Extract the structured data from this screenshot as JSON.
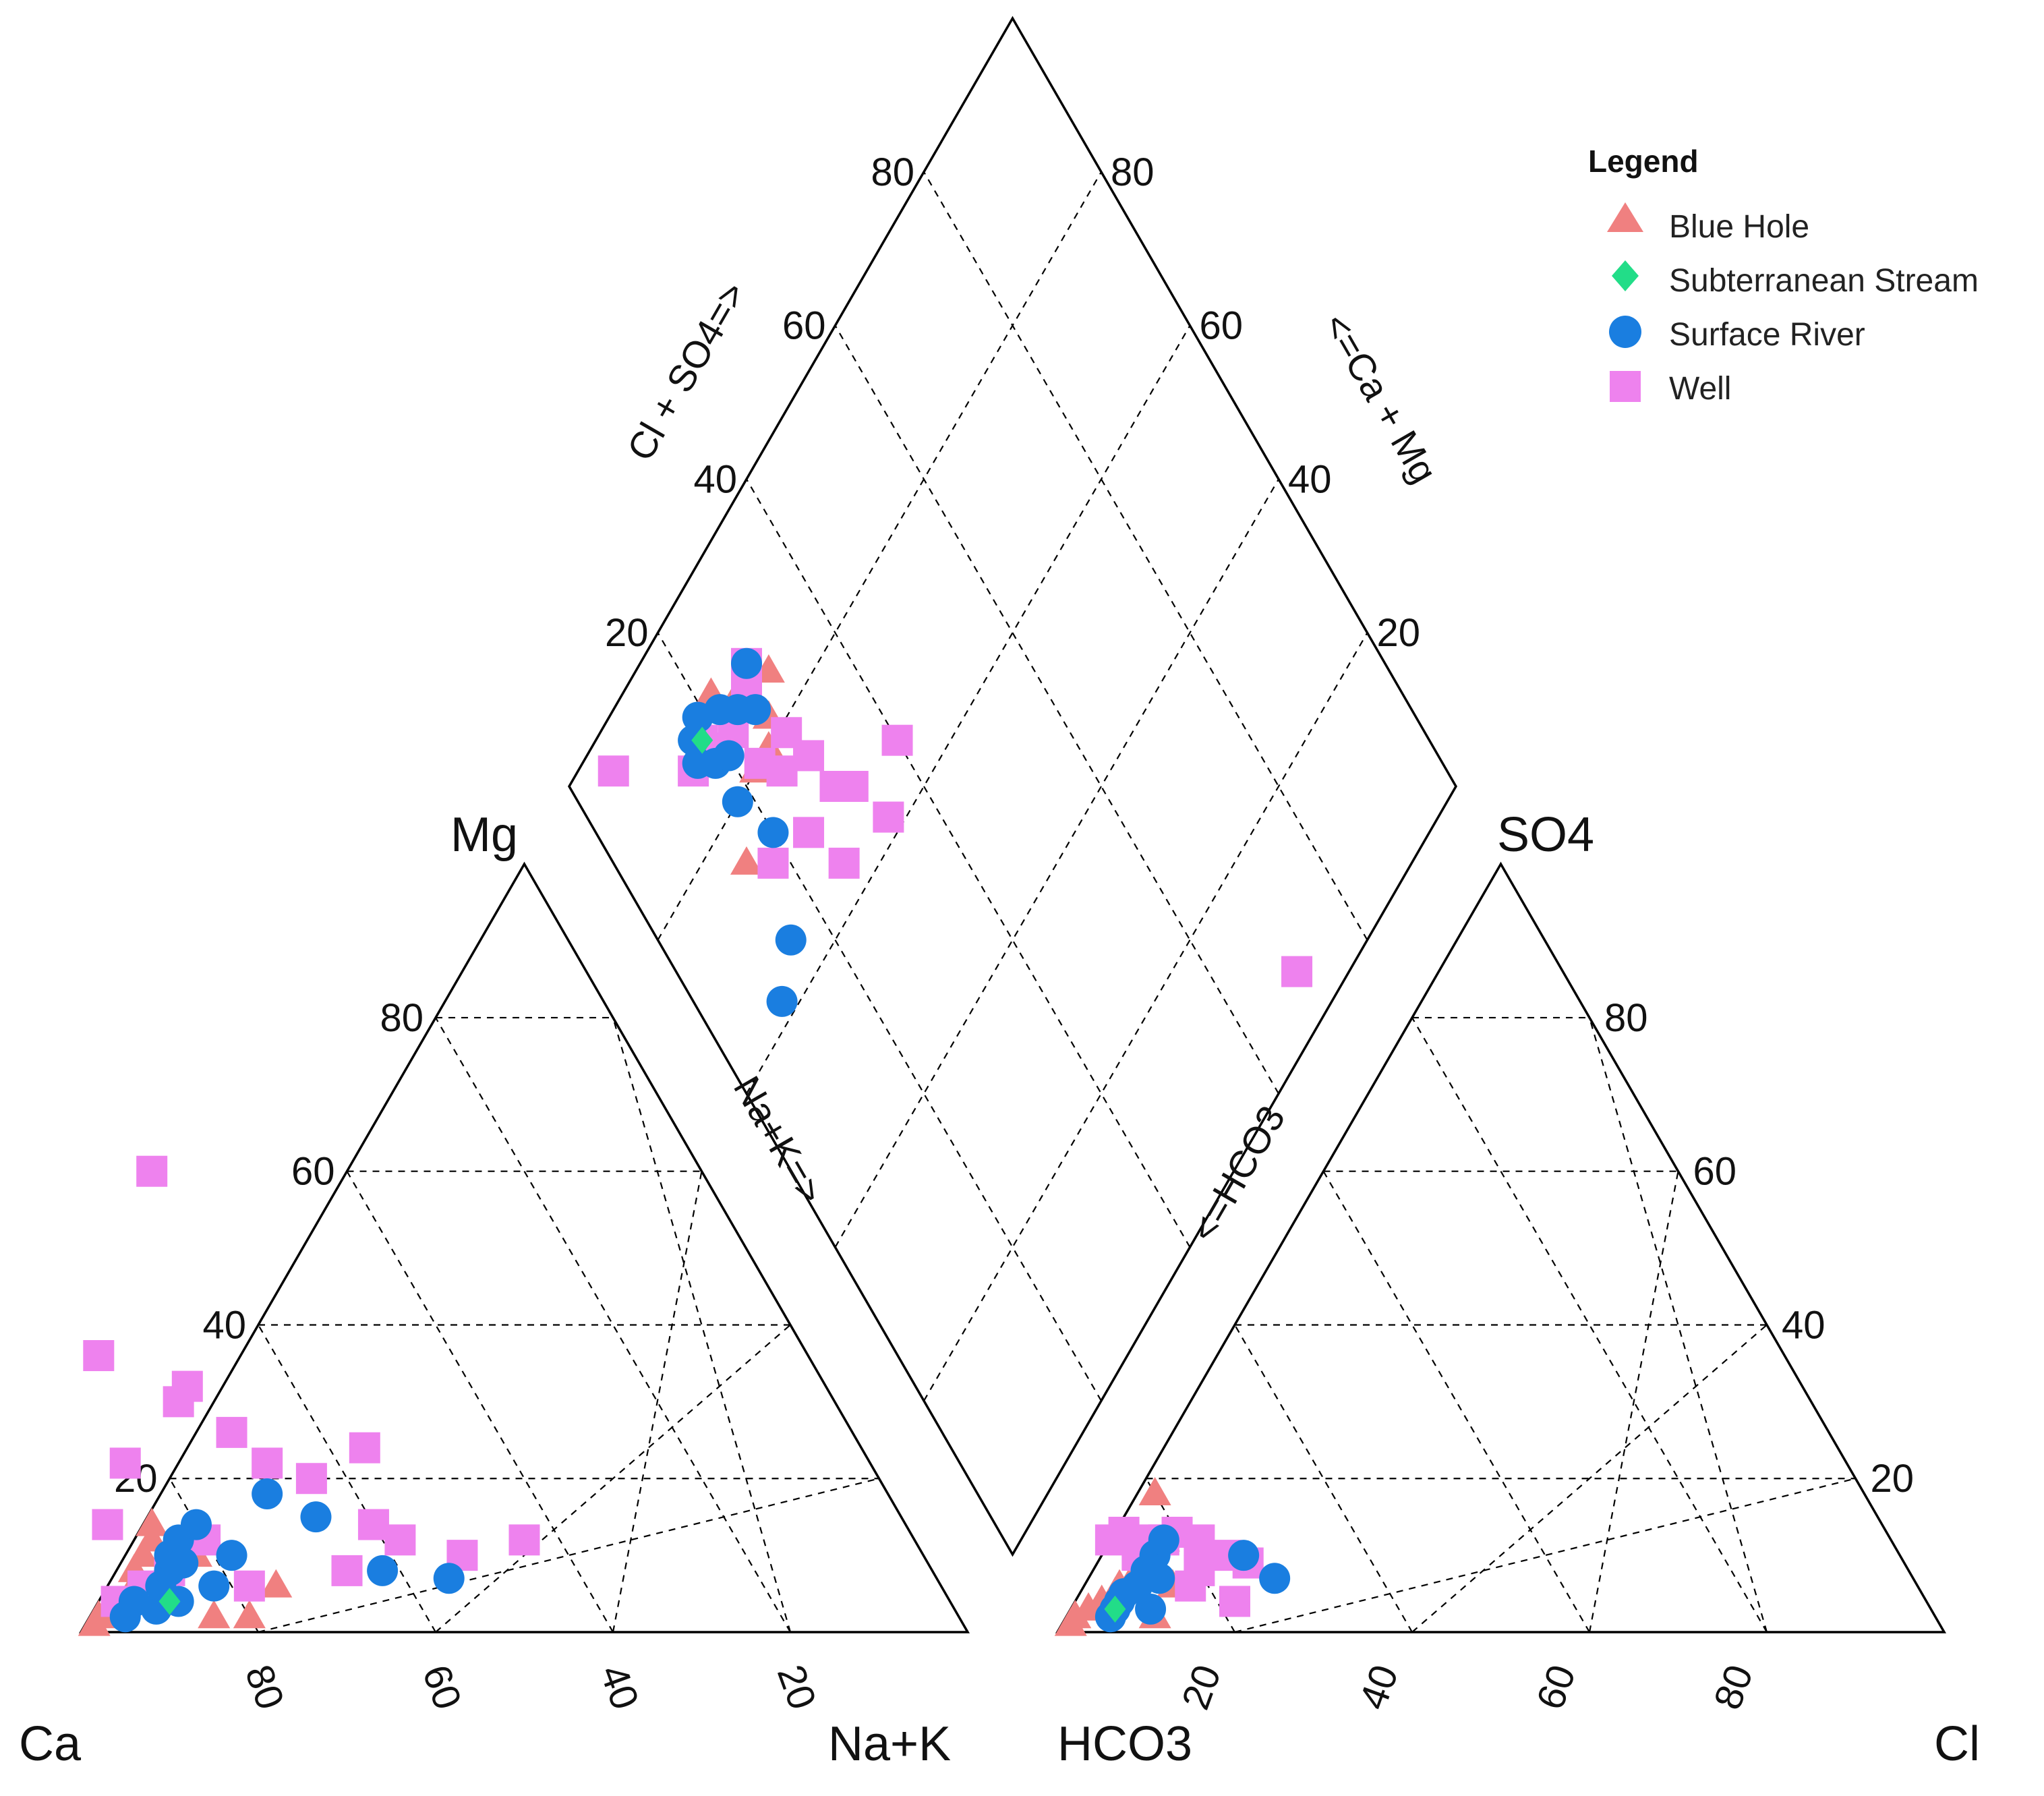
{
  "chart_data": {
    "type": "scatter",
    "subtype": "piper-trilinear-diagram",
    "title": "",
    "corner_labels": {
      "cation_left": "Ca",
      "cation_right": "Na+K",
      "cation_top": "Mg",
      "anion_left": "HCO3",
      "anion_right": "Cl",
      "anion_top": "SO4"
    },
    "axis_titles": {
      "cation_nak": "Na+K=>",
      "anion_hco3": "<=HCO3",
      "diamond_clso4": "Cl + SO4=>",
      "diamond_camg": "<=Ca + Mg"
    },
    "tick_values": [
      20,
      40,
      60,
      80
    ],
    "tick_labels": {
      "cation_mg": [
        "20",
        "40",
        "60",
        "80"
      ],
      "cation_bottom": [
        "80",
        "60",
        "40",
        "20"
      ],
      "anion_so4": [
        "20",
        "40",
        "60",
        "80"
      ],
      "anion_bottom": [
        "20",
        "40",
        "60",
        "80"
      ],
      "diamond_left": [
        "20",
        "40",
        "60",
        "80"
      ],
      "diamond_right": [
        "20",
        "40",
        "60",
        "80"
      ]
    },
    "legend": {
      "title": "Legend",
      "entries": [
        {
          "name": "Blue Hole",
          "marker": "triangle",
          "color": "#f08080"
        },
        {
          "name": "Subterranean Stream",
          "marker": "diamond",
          "color": "#22dd88"
        },
        {
          "name": "Surface River",
          "marker": "circle",
          "color": "#1a7ee0"
        },
        {
          "name": "Well",
          "marker": "square",
          "color": "#ee82ee"
        }
      ]
    },
    "series": [
      {
        "name": "Blue Hole",
        "cations": [
          [
            98,
            1
          ],
          [
            97,
            2
          ],
          [
            95,
            3
          ],
          [
            93,
            4
          ],
          [
            91,
            6
          ],
          [
            90,
            8
          ],
          [
            88,
            10
          ],
          [
            86,
            12
          ],
          [
            85,
            14
          ],
          [
            82,
            10
          ],
          [
            75,
            6
          ],
          [
            84,
            2
          ],
          [
            80,
            2
          ]
        ],
        "anions": [
          [
            98,
            1
          ],
          [
            97,
            2
          ],
          [
            95,
            3
          ],
          [
            93,
            4
          ],
          [
            91,
            5
          ],
          [
            90,
            6
          ],
          [
            87,
            8
          ],
          [
            85,
            10
          ],
          [
            82,
            12
          ],
          [
            80,
            18
          ],
          [
            84,
            6
          ],
          [
            88,
            2
          ]
        ],
        "diamond": [
          [
            22,
            90
          ],
          [
            26,
            87
          ],
          [
            27,
            82
          ],
          [
            30,
            85
          ],
          [
            22,
            80
          ],
          [
            15,
            75
          ],
          [
            25,
            80
          ]
        ]
      },
      {
        "name": "Subterranean Stream",
        "cations": [
          [
            88,
            4
          ]
        ],
        "anions": [
          [
            92,
            3
          ]
        ],
        "diamond": [
          [
            18,
            88
          ]
        ]
      },
      {
        "name": "Surface River",
        "cations": [
          [
            94,
            2
          ],
          [
            92,
            4
          ],
          [
            90,
            3
          ],
          [
            88,
            6
          ],
          [
            86,
            8
          ],
          [
            85,
            10
          ],
          [
            83,
            12
          ],
          [
            84,
            9
          ],
          [
            80,
            14
          ],
          [
            78,
            10
          ],
          [
            70,
            18
          ],
          [
            66,
            15
          ],
          [
            62,
            8
          ],
          [
            55,
            7
          ],
          [
            82,
            6
          ],
          [
            87,
            4
          ]
        ],
        "anions": [
          [
            93,
            2
          ],
          [
            92,
            3
          ],
          [
            91,
            4
          ],
          [
            90,
            5
          ],
          [
            88,
            6
          ],
          [
            86,
            8
          ],
          [
            84,
            10
          ],
          [
            82,
            12
          ],
          [
            74,
            10
          ],
          [
            72,
            7
          ],
          [
            88,
            3
          ],
          [
            85,
            7
          ]
        ],
        "diamond": [
          [
            16,
            87
          ],
          [
            17,
            89
          ],
          [
            18,
            85
          ],
          [
            20,
            84
          ],
          [
            19,
            90
          ],
          [
            22,
            88
          ],
          [
            24,
            86
          ],
          [
            26,
            84
          ],
          [
            28,
            88
          ],
          [
            18,
            80
          ],
          [
            20,
            74
          ],
          [
            15,
            65
          ],
          [
            10,
            62
          ]
        ]
      },
      {
        "name": "Well",
        "cations": [
          [
            62,
            60
          ],
          [
            80,
            36
          ],
          [
            74,
            30
          ],
          [
            70,
            26
          ],
          [
            68,
            22
          ],
          [
            72,
            32
          ],
          [
            60,
            14
          ],
          [
            58,
            12
          ],
          [
            64,
            20
          ],
          [
            80,
            12
          ],
          [
            86,
            8
          ],
          [
            90,
            6
          ],
          [
            94,
            4
          ],
          [
            78,
            6
          ],
          [
            66,
            8
          ],
          [
            56,
            24
          ],
          [
            52,
            10
          ],
          [
            44,
            12
          ],
          [
            84,
            22
          ],
          [
            90,
            14
          ]
        ],
        "anions": [
          [
            88,
            12
          ],
          [
            86,
            13
          ],
          [
            84,
            12
          ],
          [
            82,
            12
          ],
          [
            80,
            13
          ],
          [
            78,
            12
          ],
          [
            80,
            8
          ],
          [
            76,
            10
          ],
          [
            74,
            9
          ],
          [
            86,
            10
          ],
          [
            82,
            6
          ],
          [
            78,
            4
          ],
          [
            30,
            86
          ]
        ],
        "diamond": [
          [
            15,
            87
          ],
          [
            18,
            86
          ],
          [
            20,
            85
          ],
          [
            18,
            88
          ],
          [
            22,
            85
          ],
          [
            26,
            86
          ],
          [
            28,
            88
          ],
          [
            23,
            80
          ],
          [
            25,
            77
          ],
          [
            28,
            79
          ],
          [
            29,
            75
          ],
          [
            24,
            70
          ],
          [
            30,
            70
          ],
          [
            32,
            68
          ],
          [
            26,
            64
          ],
          [
            34,
            62
          ],
          [
            18,
            72
          ],
          [
            40,
            66
          ],
          [
            27,
            87
          ],
          [
            6,
            96
          ]
        ]
      }
    ]
  }
}
